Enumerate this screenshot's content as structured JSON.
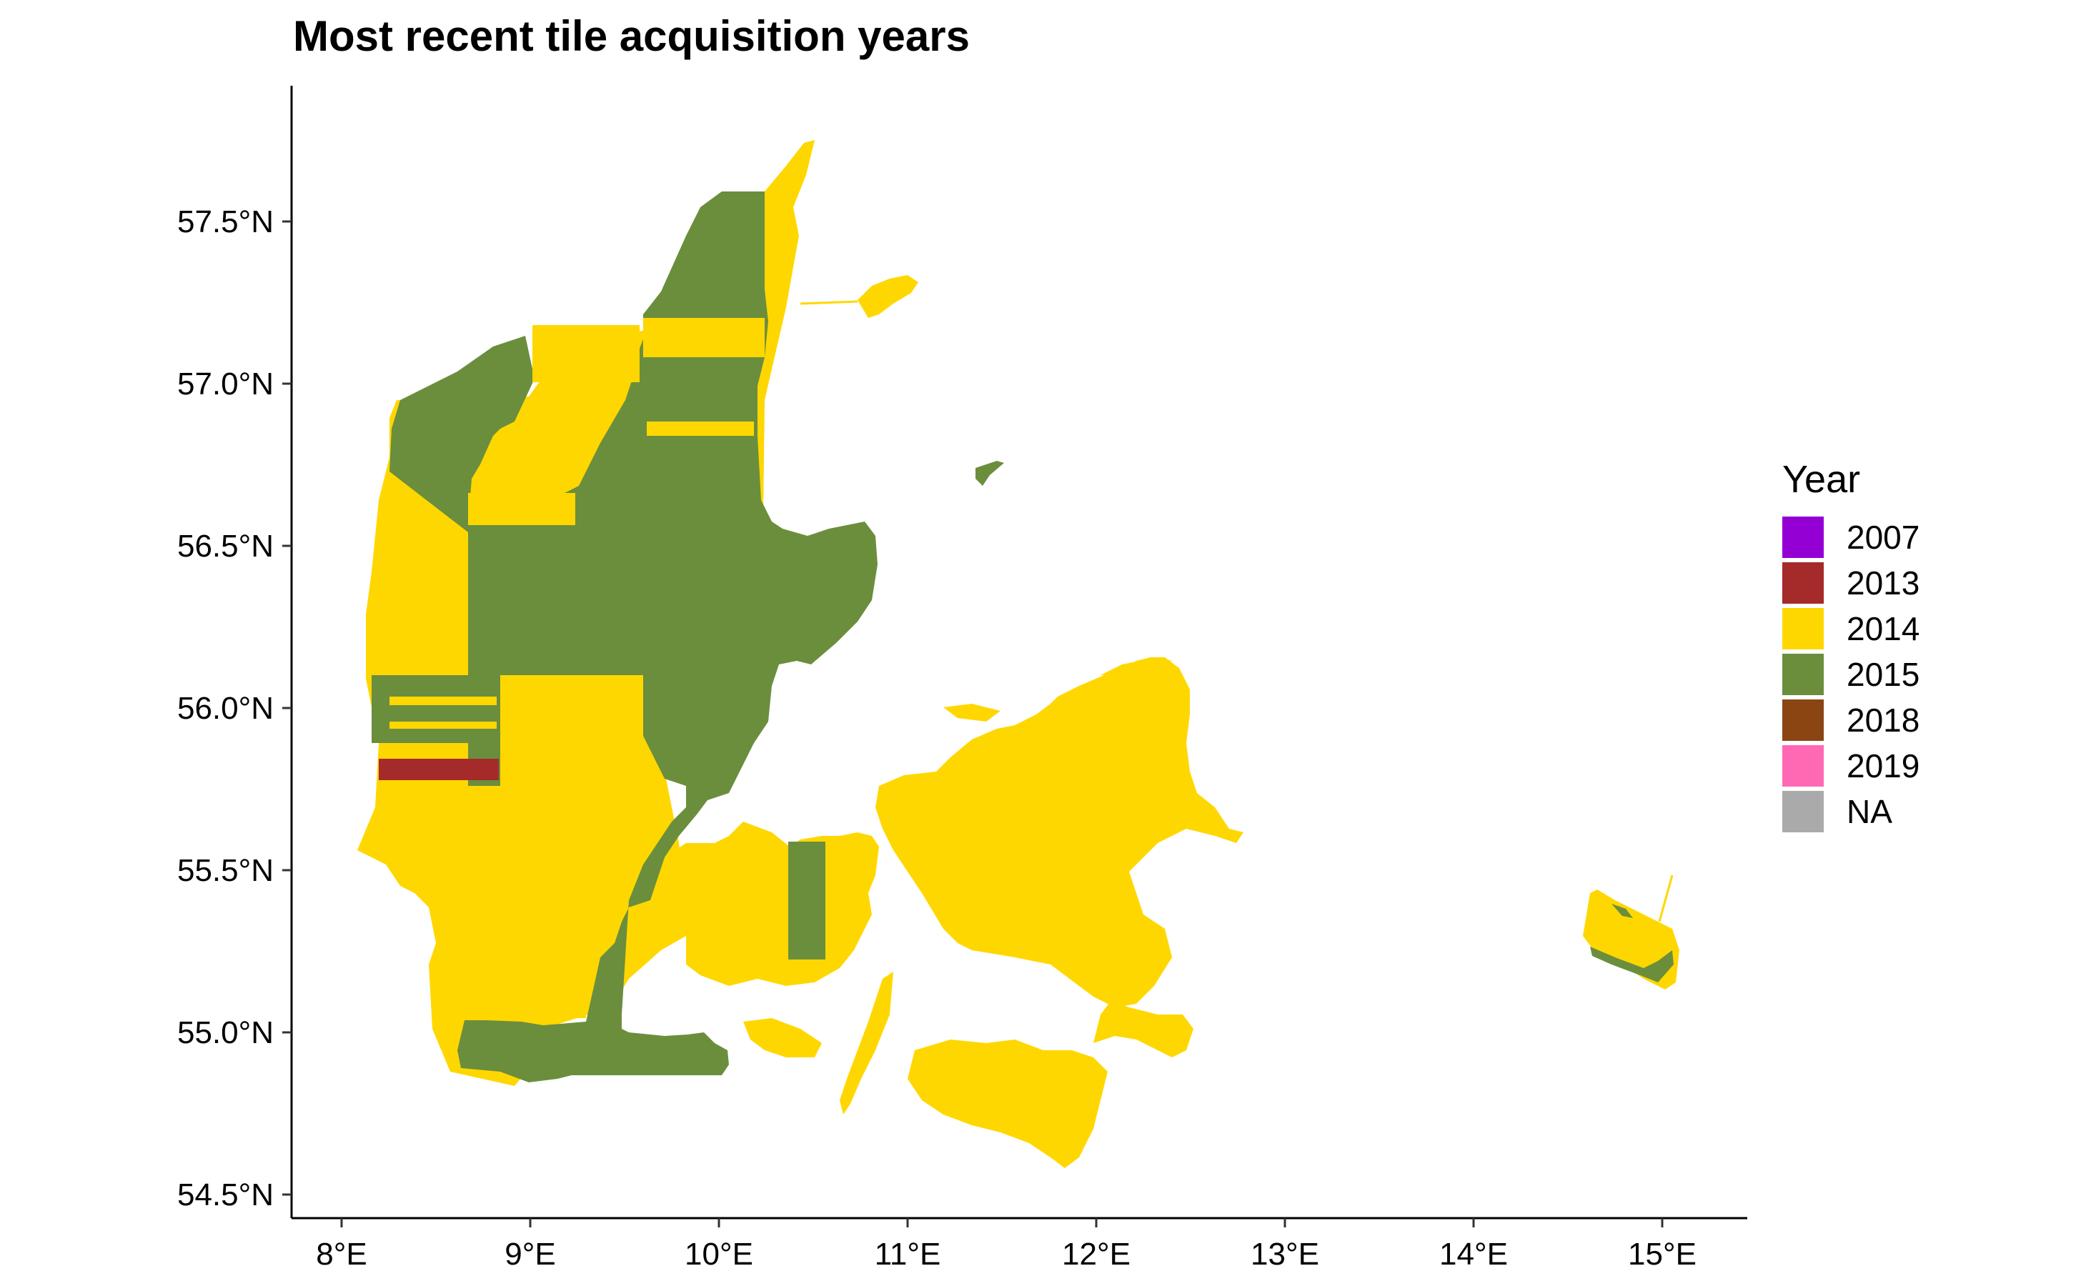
{
  "title": "Most recent tile acquisition years",
  "axes": {
    "x_ticks": [
      "8°E",
      "9°E",
      "10°E",
      "11°E",
      "12°E",
      "13°E",
      "14°E",
      "15°E"
    ],
    "y_ticks": [
      "54.5°N",
      "55.0°N",
      "55.5°N",
      "56.0°N",
      "56.5°N",
      "57.0°N",
      "57.5°N"
    ]
  },
  "map": {
    "projection": "longitude/latitude",
    "extent": {
      "lon": [
        7.7,
        15.4
      ],
      "lat": [
        54.4,
        57.85
      ]
    },
    "region": "Denmark"
  },
  "legend": {
    "title": "Year",
    "items": [
      {
        "label": "2007",
        "color": "#9400D3"
      },
      {
        "label": "2013",
        "color": "#A52A2A"
      },
      {
        "label": "2014",
        "color": "#FFD700"
      },
      {
        "label": "2015",
        "color": "#6B8E3D"
      },
      {
        "label": "2018",
        "color": "#8B4513"
      },
      {
        "label": "2019",
        "color": "#FF69B4"
      },
      {
        "label": "NA",
        "color": "#AAAAAA"
      }
    ]
  }
}
